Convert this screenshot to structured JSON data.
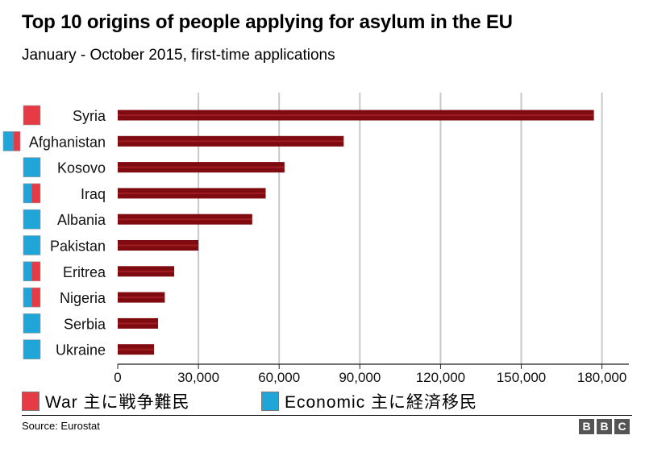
{
  "title": "Top 10 origins of people applying for asylum in the EU",
  "subtitle": "January - October 2015, first-time applications",
  "legend": {
    "war_label": "War 主に戦争難民",
    "economic_label": "Economic 主に経済移民"
  },
  "source": "Source: Eurostat",
  "logo": [
    "B",
    "B",
    "C"
  ],
  "colors": {
    "bar": "#7f0a0f",
    "bar_highlight": "#b22a2f",
    "war": "#e63a47",
    "economic": "#1fa5d8",
    "grid": "#c8c8c8"
  },
  "chart_data": {
    "type": "bar",
    "orientation": "horizontal",
    "categories": [
      "Syria",
      "Afghanistan",
      "Kosovo",
      "Iraq",
      "Albania",
      "Pakistan",
      "Eritrea",
      "Nigeria",
      "Serbia",
      "Ukraine"
    ],
    "values": [
      177000,
      84000,
      62000,
      55000,
      50000,
      30000,
      21000,
      17500,
      15000,
      13500
    ],
    "migrant_type_war_share": [
      1.0,
      0.4,
      0.0,
      0.5,
      0.0,
      0.0,
      0.5,
      0.5,
      0.0,
      0.0
    ],
    "xlim": [
      0,
      190000
    ],
    "xticks": [
      0,
      30000,
      60000,
      90000,
      120000,
      150000,
      180000
    ],
    "xtick_labels": [
      "0",
      "30,000",
      "60,000",
      "90,000",
      "120,000",
      "150,000",
      "180,000"
    ],
    "grid": true,
    "xlabel": "",
    "ylabel": ""
  }
}
